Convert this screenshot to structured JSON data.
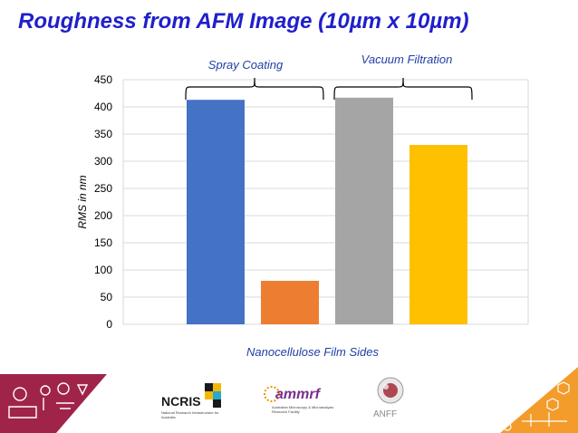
{
  "slide": {
    "title": "Roughness from AFM Image (10µm x 10µm)"
  },
  "chart_data": {
    "type": "bar",
    "title": "",
    "xlabel": "Nanocellulose Film Sides",
    "ylabel": "RMS  in nm",
    "ylim": [
      0,
      450
    ],
    "yticks": [
      0,
      50,
      100,
      150,
      200,
      250,
      300,
      350,
      400,
      450
    ],
    "grid": true,
    "legend": "none",
    "bars": [
      {
        "value": 413,
        "color": "#4472c4"
      },
      {
        "value": 80,
        "color": "#ed7d31"
      },
      {
        "value": 417,
        "color": "#a5a5a5"
      },
      {
        "value": 330,
        "color": "#ffc000"
      }
    ],
    "groups": [
      {
        "label": "Spray Coating",
        "bars": [
          0,
          1
        ],
        "label_position": "below-bracket"
      },
      {
        "label": "Vacuum Filtration",
        "bars": [
          2,
          3
        ],
        "label_position": "above-bracket"
      }
    ]
  },
  "footer": {
    "logos": [
      {
        "name": "ncris",
        "text": "NCRIS",
        "subtitle": "National Research Infrastructure for Australia",
        "colors": [
          "#1a1a1a",
          "#f5b800",
          "#2aa9c9"
        ]
      },
      {
        "name": "ammrf",
        "text": "ammrf",
        "subtitle": "Australian Microscopy & Microanalysis Research Facility",
        "colors": [
          "#7b2d8e",
          "#f39200"
        ]
      },
      {
        "name": "anff",
        "text": "ANFF",
        "colors": [
          "#9d1e2b",
          "#9a9a9a"
        ]
      }
    ],
    "accent_left": "#a0244a",
    "accent_right": "#f39c2b"
  }
}
